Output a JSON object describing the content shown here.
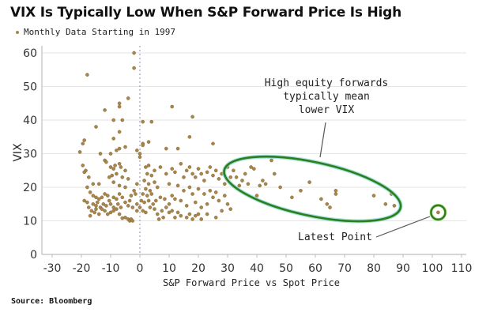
{
  "chart_data": {
    "type": "scatter",
    "title": "VIX Is Typically Low When S&P Forward Price Is High",
    "legend": [
      {
        "label": "Monthly Data Starting in 1997",
        "color": "#a8864a"
      }
    ],
    "legend_position": "top-left",
    "xlabel": "S&P Forward Price vs Spot Price",
    "ylabel": "VIX",
    "xlim": [
      -33,
      113
    ],
    "ylim": [
      0,
      62
    ],
    "xticks": [
      -30,
      -20,
      -10,
      0,
      10,
      20,
      30,
      40,
      50,
      60,
      70,
      80,
      90,
      100,
      110
    ],
    "yticks": [
      0,
      10,
      20,
      30,
      40,
      50,
      60
    ],
    "grid": "horizontal",
    "reference_line": {
      "x": 0,
      "style": "dotted"
    },
    "source": "Source: Bloomberg",
    "annotations": [
      {
        "text_lines": [
          "High equity forwards",
          "typically mean",
          "lower VIX"
        ],
        "target": "ellipse around forwards 30-90"
      },
      {
        "text": "Latest Point",
        "target": {
          "x": 102,
          "y": 12.5
        }
      }
    ],
    "series": [
      {
        "name": "Monthly Data Starting in 1997",
        "color": "#a8864a",
        "points": [
          [
            -2,
            60
          ],
          [
            -2,
            55.5
          ],
          [
            -18,
            53.5
          ],
          [
            -4,
            46.5
          ],
          [
            -7,
            45
          ],
          [
            -7,
            44
          ],
          [
            -12,
            43
          ],
          [
            -9,
            40
          ],
          [
            -6,
            40
          ],
          [
            1,
            39.5
          ],
          [
            -15,
            38
          ],
          [
            -7,
            36.5
          ],
          [
            -19,
            34
          ],
          [
            -19.5,
            33
          ],
          [
            -9,
            34.5
          ],
          [
            -20.5,
            30.5
          ],
          [
            -13.5,
            30
          ],
          [
            -10,
            30
          ],
          [
            -8,
            31
          ],
          [
            -7,
            31.5
          ],
          [
            -5,
            32
          ],
          [
            -1,
            31
          ],
          [
            0,
            30
          ],
          [
            0,
            29
          ],
          [
            1,
            33
          ],
          [
            1,
            32.5
          ],
          [
            3,
            33.5
          ],
          [
            -12,
            28
          ],
          [
            -11.5,
            27.5
          ],
          [
            -19.5,
            26.5
          ],
          [
            -18.5,
            25
          ],
          [
            -19,
            24.5
          ],
          [
            -17.5,
            23
          ],
          [
            -10,
            26
          ],
          [
            -9,
            25.5
          ],
          [
            -8.5,
            26.5
          ],
          [
            -7,
            27
          ],
          [
            -6.5,
            26
          ],
          [
            -5,
            25
          ],
          [
            -9.5,
            23.5
          ],
          [
            -10.5,
            23
          ],
          [
            -8,
            24
          ],
          [
            -6,
            23
          ],
          [
            -16,
            21
          ],
          [
            -18,
            20
          ],
          [
            -14,
            21
          ],
          [
            -9,
            21.5
          ],
          [
            -7,
            20.5
          ],
          [
            -4,
            22.5
          ],
          [
            -1,
            21
          ],
          [
            -5,
            20
          ],
          [
            -2,
            19
          ],
          [
            -1.5,
            18
          ],
          [
            -3,
            17.5
          ],
          [
            -19,
            16
          ],
          [
            -17,
            18.5
          ],
          [
            -16,
            17.5
          ],
          [
            -15,
            17
          ],
          [
            -14,
            16.5
          ],
          [
            -13,
            17
          ],
          [
            -12,
            18
          ],
          [
            -11,
            17.5
          ],
          [
            -10.5,
            16
          ],
          [
            -9,
            17
          ],
          [
            -8,
            16.5
          ],
          [
            -7,
            18
          ],
          [
            -6,
            17
          ],
          [
            -5,
            15.5
          ],
          [
            -3.5,
            16
          ],
          [
            -16,
            15
          ],
          [
            -15,
            14.5
          ],
          [
            -14.5,
            15.5
          ],
          [
            -13.5,
            14
          ],
          [
            -12.5,
            15
          ],
          [
            -11.5,
            14.5
          ],
          [
            -10,
            15
          ],
          [
            -9,
            14
          ],
          [
            -8,
            13.5
          ],
          [
            -7.5,
            15
          ],
          [
            -6.5,
            14
          ],
          [
            -4,
            14.5
          ],
          [
            -2.5,
            14
          ],
          [
            -1,
            15
          ],
          [
            0,
            14
          ],
          [
            -16.5,
            13
          ],
          [
            -15.5,
            12.5
          ],
          [
            -14,
            12
          ],
          [
            -12,
            13
          ],
          [
            -10,
            12.5
          ],
          [
            -9,
            13
          ],
          [
            -7,
            12
          ],
          [
            -5,
            11
          ],
          [
            -4,
            10.5
          ],
          [
            -3.5,
            10
          ],
          [
            -3,
            10.5
          ],
          [
            -2.5,
            10
          ],
          [
            -1,
            13
          ],
          [
            -15,
            13.5
          ],
          [
            -13,
            13.5
          ],
          [
            -17,
            11.5
          ],
          [
            -11,
            12
          ],
          [
            -6,
            10.8
          ],
          [
            -18,
            15.5
          ],
          [
            -17.5,
            14
          ],
          [
            4,
            39.5
          ],
          [
            11,
            44
          ],
          [
            9,
            31.5
          ],
          [
            13,
            31.5
          ],
          [
            25,
            33
          ],
          [
            18,
            41
          ],
          [
            17,
            35
          ],
          [
            2,
            26
          ],
          [
            3,
            26.5
          ],
          [
            5,
            25
          ],
          [
            7,
            26
          ],
          [
            2.5,
            24
          ],
          [
            4,
            23.5
          ],
          [
            1.5,
            22
          ],
          [
            3,
            21
          ],
          [
            5,
            21.5
          ],
          [
            6,
            20
          ],
          [
            2,
            19.5
          ],
          [
            3.5,
            19
          ],
          [
            1,
            18
          ],
          [
            2.5,
            17.5
          ],
          [
            4,
            18
          ],
          [
            0.5,
            16
          ],
          [
            1.5,
            15.5
          ],
          [
            3,
            16
          ],
          [
            4.5,
            15
          ],
          [
            5.5,
            16
          ],
          [
            7,
            17
          ],
          [
            8.5,
            16.5
          ],
          [
            1,
            13
          ],
          [
            2,
            12.5
          ],
          [
            3.5,
            14
          ],
          [
            5,
            13.5
          ],
          [
            6,
            12
          ],
          [
            7.5,
            13
          ],
          [
            9,
            14
          ],
          [
            10,
            12.5
          ],
          [
            11,
            13
          ],
          [
            12,
            11
          ],
          [
            13,
            12.5
          ],
          [
            14,
            11.5
          ],
          [
            8,
            11
          ],
          [
            6.5,
            10.5
          ],
          [
            16,
            11
          ],
          [
            17,
            12
          ],
          [
            18,
            10.5
          ],
          [
            19,
            11.5
          ],
          [
            20,
            12
          ],
          [
            21,
            10.5
          ],
          [
            23,
            12
          ],
          [
            26,
            11
          ],
          [
            28,
            13
          ],
          [
            9,
            24
          ],
          [
            11,
            25.5
          ],
          [
            12,
            24.5
          ],
          [
            14,
            27
          ],
          [
            15,
            23
          ],
          [
            16,
            25
          ],
          [
            17,
            26
          ],
          [
            18,
            24
          ],
          [
            19,
            23
          ],
          [
            20,
            25.5
          ],
          [
            21,
            24
          ],
          [
            22,
            22
          ],
          [
            23,
            24.5
          ],
          [
            24,
            26
          ],
          [
            25,
            23.5
          ],
          [
            26,
            25
          ],
          [
            27,
            22.5
          ],
          [
            28,
            24
          ],
          [
            29,
            21
          ],
          [
            30,
            26
          ],
          [
            31,
            23
          ],
          [
            32,
            25
          ],
          [
            10,
            21
          ],
          [
            13,
            20.5
          ],
          [
            15,
            19
          ],
          [
            17,
            20
          ],
          [
            18,
            18
          ],
          [
            20,
            19.5
          ],
          [
            22,
            18
          ],
          [
            24,
            19
          ],
          [
            25,
            17
          ],
          [
            26,
            18.5
          ],
          [
            27,
            16
          ],
          [
            29,
            17.5
          ],
          [
            30,
            15
          ],
          [
            31,
            13.5
          ],
          [
            14,
            16
          ],
          [
            16,
            14.5
          ],
          [
            19,
            15.5
          ],
          [
            21,
            14
          ],
          [
            23,
            15
          ],
          [
            11,
            17.5
          ],
          [
            12,
            16.5
          ],
          [
            10,
            15
          ],
          [
            36,
            24
          ],
          [
            37,
            21
          ],
          [
            38,
            26
          ],
          [
            39,
            25.5
          ],
          [
            41,
            20.5
          ],
          [
            43,
            21
          ],
          [
            45,
            28
          ],
          [
            46,
            24
          ],
          [
            48,
            20
          ],
          [
            52,
            17
          ],
          [
            55,
            19
          ],
          [
            58,
            21.5
          ],
          [
            62,
            16.5
          ],
          [
            64,
            15
          ],
          [
            65,
            14
          ],
          [
            67,
            19
          ],
          [
            67,
            18
          ],
          [
            80,
            17.5
          ],
          [
            84,
            15
          ],
          [
            86,
            18
          ],
          [
            87,
            14.5
          ],
          [
            35,
            22
          ],
          [
            33,
            23
          ],
          [
            34,
            20.5
          ],
          [
            40,
            17.5
          ],
          [
            42,
            22
          ],
          [
            102,
            12.5
          ]
        ]
      }
    ]
  }
}
